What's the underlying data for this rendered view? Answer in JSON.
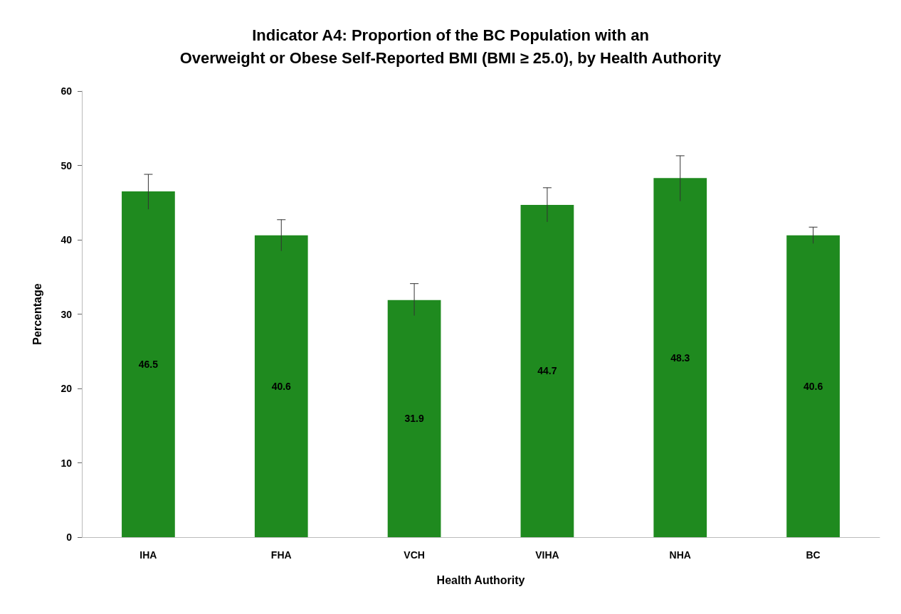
{
  "chart_data": {
    "type": "bar",
    "title": "Indicator A4: Proportion of the BC Population with an\nOverweight or Obese Self-Reported BMI (BMI ≥ 25.0), by Health Authority",
    "xlabel": "Health Authority",
    "ylabel": "Percentage",
    "categories": [
      "IHA",
      "FHA",
      "VCH",
      "VIHA",
      "NHA",
      "BC"
    ],
    "values": [
      46.5,
      40.6,
      31.9,
      44.7,
      48.3,
      40.6
    ],
    "errors": [
      [
        44.1,
        48.8
      ],
      [
        38.5,
        42.7
      ],
      [
        29.8,
        34.1
      ],
      [
        42.4,
        47.0
      ],
      [
        45.2,
        51.3
      ],
      [
        39.5,
        41.7
      ]
    ],
    "color": "#1f8a1f",
    "ylim": [
      0,
      60
    ],
    "yticks": [
      0,
      10,
      20,
      30,
      40,
      50,
      60
    ],
    "data_labels": true,
    "grid": false
  }
}
